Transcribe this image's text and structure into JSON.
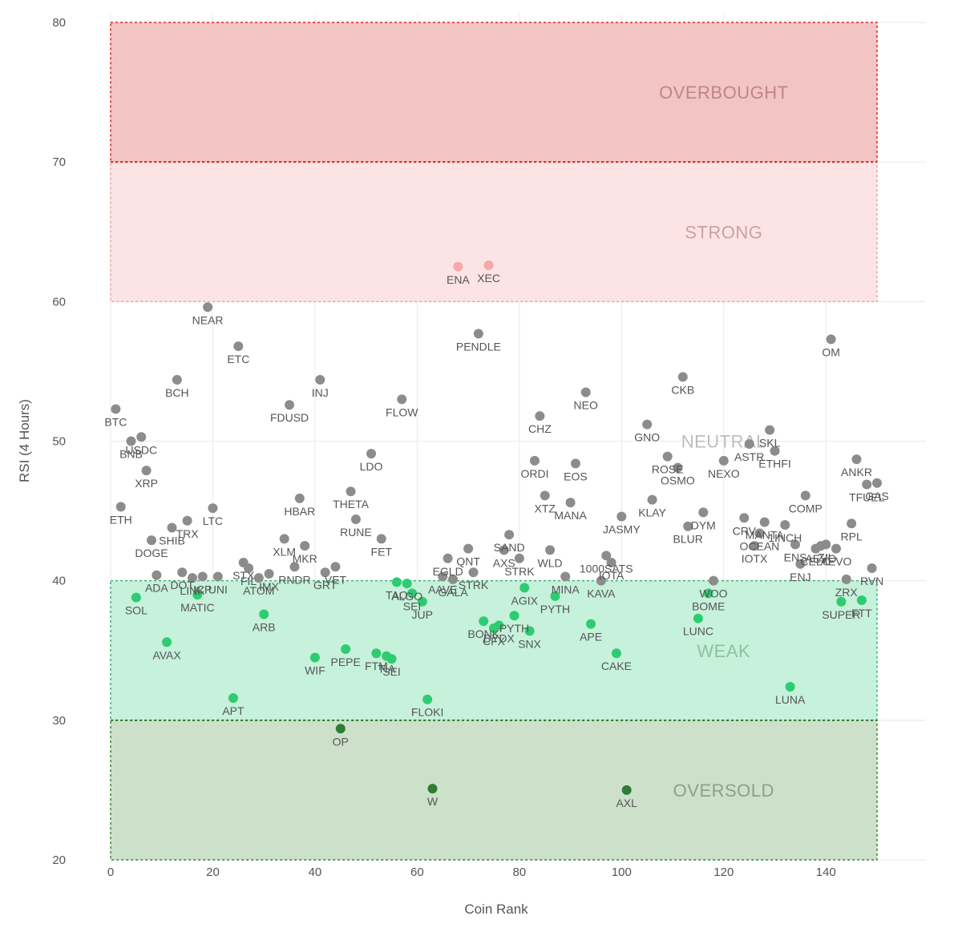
{
  "chart_data": {
    "type": "scatter",
    "xlabel": "Coin Rank",
    "ylabel": "RSI (4 Hours)",
    "xlim": [
      0,
      150
    ],
    "ylim": [
      20,
      80
    ],
    "x_ticks": [
      0,
      20,
      40,
      60,
      80,
      100,
      120,
      140
    ],
    "y_ticks": [
      20,
      30,
      40,
      50,
      60,
      70,
      80
    ],
    "grid": true,
    "zones": [
      {
        "label": "OVERBOUGHT",
        "from": 70,
        "to": 80,
        "fill": "#f2c4c4",
        "border": "#e02424",
        "text_color": "#c08585"
      },
      {
        "label": "STRONG",
        "from": 60,
        "to": 70,
        "fill": "#fde4e4",
        "border": "#f0a0a0",
        "text_color": "#c9a1a1"
      },
      {
        "label": "NEUTRAL",
        "from": 40,
        "to": 60,
        "fill": "none",
        "border": "none",
        "text_color": "#bdbdbd"
      },
      {
        "label": "WEAK",
        "from": 30,
        "to": 40,
        "fill": "#c6f1db",
        "border": "#3cb371",
        "text_color": "#8fbfa4"
      },
      {
        "label": "OVERSOLD",
        "from": 20,
        "to": 30,
        "fill": "#cde1ca",
        "border": "#2e8b2e",
        "text_color": "#8aa288"
      }
    ],
    "colors": {
      "neutral": "#8c8c8c",
      "strong": "#f4a9ab",
      "weak": "#2ecc71",
      "oversold": "#2e7d32"
    },
    "points": [
      {
        "name": "BTC",
        "x": 1,
        "y": 52.3
      },
      {
        "name": "ETH",
        "x": 2,
        "y": 45.3
      },
      {
        "name": "BNB",
        "x": 4,
        "y": 50.0
      },
      {
        "name": "SOL",
        "x": 5,
        "y": 38.8
      },
      {
        "name": "USDC",
        "x": 6,
        "y": 50.3
      },
      {
        "name": "XRP",
        "x": 7,
        "y": 47.9
      },
      {
        "name": "DOGE",
        "x": 8,
        "y": 42.9
      },
      {
        "name": "ADA",
        "x": 9,
        "y": 40.4
      },
      {
        "name": "AVAX",
        "x": 11,
        "y": 35.6
      },
      {
        "name": "SHIB",
        "x": 12,
        "y": 43.8
      },
      {
        "name": "BCH",
        "x": 13,
        "y": 54.4
      },
      {
        "name": "DOT",
        "x": 14,
        "y": 40.6
      },
      {
        "name": "TRX",
        "x": 15,
        "y": 44.3
      },
      {
        "name": "LINK",
        "x": 16,
        "y": 40.2
      },
      {
        "name": "MATIC",
        "x": 17,
        "y": 39.0
      },
      {
        "name": "ICP",
        "x": 18,
        "y": 40.3
      },
      {
        "name": "NEAR",
        "x": 19,
        "y": 59.6
      },
      {
        "name": "LTC",
        "x": 20,
        "y": 45.2
      },
      {
        "name": "UNI",
        "x": 21,
        "y": 40.3
      },
      {
        "name": "APT",
        "x": 24,
        "y": 31.6
      },
      {
        "name": "STX",
        "x": 26,
        "y": 41.3
      },
      {
        "name": "ETC",
        "x": 25,
        "y": 56.8
      },
      {
        "name": "FIL",
        "x": 27,
        "y": 40.9
      },
      {
        "name": "ATOM",
        "x": 29,
        "y": 40.2
      },
      {
        "name": "ARB",
        "x": 30,
        "y": 37.6
      },
      {
        "name": "IMX",
        "x": 31,
        "y": 40.5
      },
      {
        "name": "XLM",
        "x": 34,
        "y": 43.0
      },
      {
        "name": "FDUSD",
        "x": 35,
        "y": 52.6
      },
      {
        "name": "RNDR",
        "x": 36,
        "y": 41.0
      },
      {
        "name": "HBAR",
        "x": 37,
        "y": 45.9
      },
      {
        "name": "MKR",
        "x": 38,
        "y": 42.5
      },
      {
        "name": "WIF",
        "x": 40,
        "y": 34.5
      },
      {
        "name": "INJ",
        "x": 41,
        "y": 54.4
      },
      {
        "name": "GRT",
        "x": 42,
        "y": 40.6
      },
      {
        "name": "VET",
        "x": 44,
        "y": 41.0
      },
      {
        "name": "OP",
        "x": 45,
        "y": 29.4
      },
      {
        "name": "PEPE",
        "x": 46,
        "y": 35.1
      },
      {
        "name": "THETA",
        "x": 47,
        "y": 46.4
      },
      {
        "name": "RUNE",
        "x": 48,
        "y": 44.4
      },
      {
        "name": "LDO",
        "x": 51,
        "y": 49.1
      },
      {
        "name": "FTM",
        "x": 52,
        "y": 34.8
      },
      {
        "name": "FET",
        "x": 53,
        "y": 43.0
      },
      {
        "name": "TIA",
        "x": 54,
        "y": 34.6
      },
      {
        "name": "SEI",
        "x": 55,
        "y": 34.4
      },
      {
        "name": "TAO",
        "x": 56,
        "y": 39.9
      },
      {
        "name": "FLOW",
        "x": 57,
        "y": 53.0
      },
      {
        "name": "ALGO",
        "x": 58,
        "y": 39.8
      },
      {
        "name": "SEI",
        "x": 59,
        "y": 39.1
      },
      {
        "name": "JUP",
        "x": 61,
        "y": 38.5
      },
      {
        "name": "FLOKI",
        "x": 62,
        "y": 31.5
      },
      {
        "name": "AAVE",
        "x": 65,
        "y": 40.3
      },
      {
        "name": "W",
        "x": 63,
        "y": 25.1
      },
      {
        "name": "EGLD",
        "x": 66,
        "y": 41.6
      },
      {
        "name": "GALA",
        "x": 67,
        "y": 40.1
      },
      {
        "name": "ENA",
        "x": 68,
        "y": 62.5
      },
      {
        "name": "QNT",
        "x": 70,
        "y": 42.3
      },
      {
        "name": "STRK",
        "x": 71,
        "y": 40.6
      },
      {
        "name": "PENDLE",
        "x": 72,
        "y": 57.7
      },
      {
        "name": "BONK",
        "x": 73,
        "y": 37.1
      },
      {
        "name": "XEC",
        "x": 74,
        "y": 62.6
      },
      {
        "name": "CFX",
        "x": 75,
        "y": 36.6
      },
      {
        "name": "DYDX",
        "x": 76,
        "y": 36.8
      },
      {
        "name": "AXS",
        "x": 77,
        "y": 42.2
      },
      {
        "name": "SAND",
        "x": 78,
        "y": 43.3
      },
      {
        "name": "PYTH",
        "x": 79,
        "y": 37.5
      },
      {
        "name": "STRK",
        "x": 80,
        "y": 41.6
      },
      {
        "name": "AGIX",
        "x": 81,
        "y": 39.5
      },
      {
        "name": "SNX",
        "x": 82,
        "y": 36.4
      },
      {
        "name": "ORDI",
        "x": 83,
        "y": 48.6
      },
      {
        "name": "CHZ",
        "x": 84,
        "y": 51.8
      },
      {
        "name": "XTZ",
        "x": 85,
        "y": 46.1
      },
      {
        "name": "WLD",
        "x": 86,
        "y": 42.2
      },
      {
        "name": "PYTH",
        "x": 87,
        "y": 38.9
      },
      {
        "name": "MINA",
        "x": 89,
        "y": 40.3
      },
      {
        "name": "MANA",
        "x": 90,
        "y": 45.6
      },
      {
        "name": "EOS",
        "x": 91,
        "y": 48.4
      },
      {
        "name": "NEO",
        "x": 93,
        "y": 53.5
      },
      {
        "name": "APE",
        "x": 94,
        "y": 36.9
      },
      {
        "name": "KAVA",
        "x": 96,
        "y": 40.0
      },
      {
        "name": "1000SATS",
        "x": 97,
        "y": 41.8
      },
      {
        "name": "IOTA",
        "x": 98,
        "y": 41.3
      },
      {
        "name": "CAKE",
        "x": 99,
        "y": 34.8
      },
      {
        "name": "JASMY",
        "x": 100,
        "y": 44.6
      },
      {
        "name": "AXL",
        "x": 101,
        "y": 25.0
      },
      {
        "name": "KLAY",
        "x": 106,
        "y": 45.8
      },
      {
        "name": "GNO",
        "x": 105,
        "y": 51.2
      },
      {
        "name": "ROSE",
        "x": 109,
        "y": 48.9
      },
      {
        "name": "OSMO",
        "x": 111,
        "y": 48.1
      },
      {
        "name": "CKB",
        "x": 112,
        "y": 54.6
      },
      {
        "name": "BLUR",
        "x": 113,
        "y": 43.9
      },
      {
        "name": "LUNC",
        "x": 115,
        "y": 37.3
      },
      {
        "name": "DYM",
        "x": 116,
        "y": 44.9
      },
      {
        "name": "BOME",
        "x": 117,
        "y": 39.1
      },
      {
        "name": "WOO",
        "x": 118,
        "y": 40.0
      },
      {
        "name": "NEXO",
        "x": 120,
        "y": 48.6
      },
      {
        "name": "CRV",
        "x": 124,
        "y": 44.5
      },
      {
        "name": "ASTR",
        "x": 125,
        "y": 49.8
      },
      {
        "name": "IOTX",
        "x": 126,
        "y": 42.5
      },
      {
        "name": "OCEAN",
        "x": 127,
        "y": 43.4
      },
      {
        "name": "MANTA",
        "x": 128,
        "y": 44.2
      },
      {
        "name": "SKL",
        "x": 129,
        "y": 50.8
      },
      {
        "name": "ETHFI",
        "x": 130,
        "y": 49.3
      },
      {
        "name": "1INCH",
        "x": 132,
        "y": 44.0
      },
      {
        "name": "LUNA",
        "x": 133,
        "y": 32.4
      },
      {
        "name": "ENS",
        "x": 134,
        "y": 42.6
      },
      {
        "name": "ENJ",
        "x": 135,
        "y": 41.2
      },
      {
        "name": "COMP",
        "x": 136,
        "y": 46.1
      },
      {
        "name": "CELO",
        "x": 138,
        "y": 42.3
      },
      {
        "name": "AEVO",
        "x": 139,
        "y": 42.5
      },
      {
        "name": "ZIL",
        "x": 140,
        "y": 42.6
      },
      {
        "name": "OM",
        "x": 141,
        "y": 57.3
      },
      {
        "name": "AEVO",
        "x": 142,
        "y": 42.3
      },
      {
        "name": "SUPER",
        "x": 143,
        "y": 38.5
      },
      {
        "name": "ZRX",
        "x": 144,
        "y": 40.1
      },
      {
        "name": "RPL",
        "x": 145,
        "y": 44.1
      },
      {
        "name": "ANKR",
        "x": 146,
        "y": 48.7
      },
      {
        "name": "FTT",
        "x": 147,
        "y": 38.6
      },
      {
        "name": "TFUEL",
        "x": 148,
        "y": 46.9
      },
      {
        "name": "RVN",
        "x": 149,
        "y": 40.9
      },
      {
        "name": "GAS",
        "x": 150,
        "y": 47.0
      }
    ]
  }
}
